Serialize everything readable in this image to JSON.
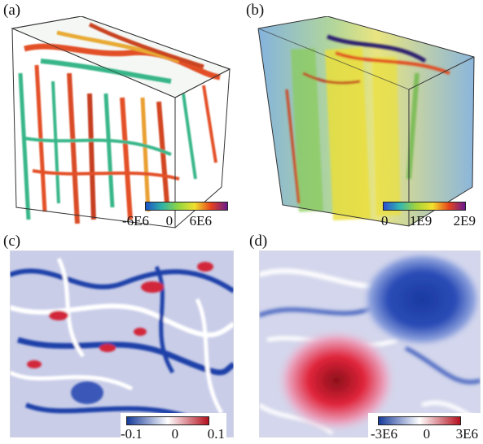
{
  "panels": [
    {
      "label": "(a)",
      "colorbar": {
        "ticks": [
          "-6E6",
          "0",
          "6E6"
        ],
        "colors": [
          "#1c54c8",
          "#2fb3a6",
          "#92d640",
          "#f0e030",
          "#e8431c",
          "#6a1a8f"
        ]
      }
    },
    {
      "label": "(b)",
      "colorbar": {
        "ticks": [
          "0",
          "1E9",
          "2E9"
        ],
        "colors": [
          "#2a4fd0",
          "#33b8b0",
          "#a4d43a",
          "#f2e12c",
          "#e8441a",
          "#6b1890"
        ]
      }
    },
    {
      "label": "(c)",
      "colorbar": {
        "ticks": [
          "-0.1",
          "0",
          "0.1"
        ],
        "colors": [
          "#163a9a",
          "#ffffff",
          "#b4101e"
        ]
      }
    },
    {
      "label": "(d)",
      "colorbar": {
        "ticks": [
          "-3E6",
          "0",
          "3E6"
        ],
        "colors": [
          "#163a9a",
          "#ffffff",
          "#b4101e"
        ]
      }
    }
  ]
}
